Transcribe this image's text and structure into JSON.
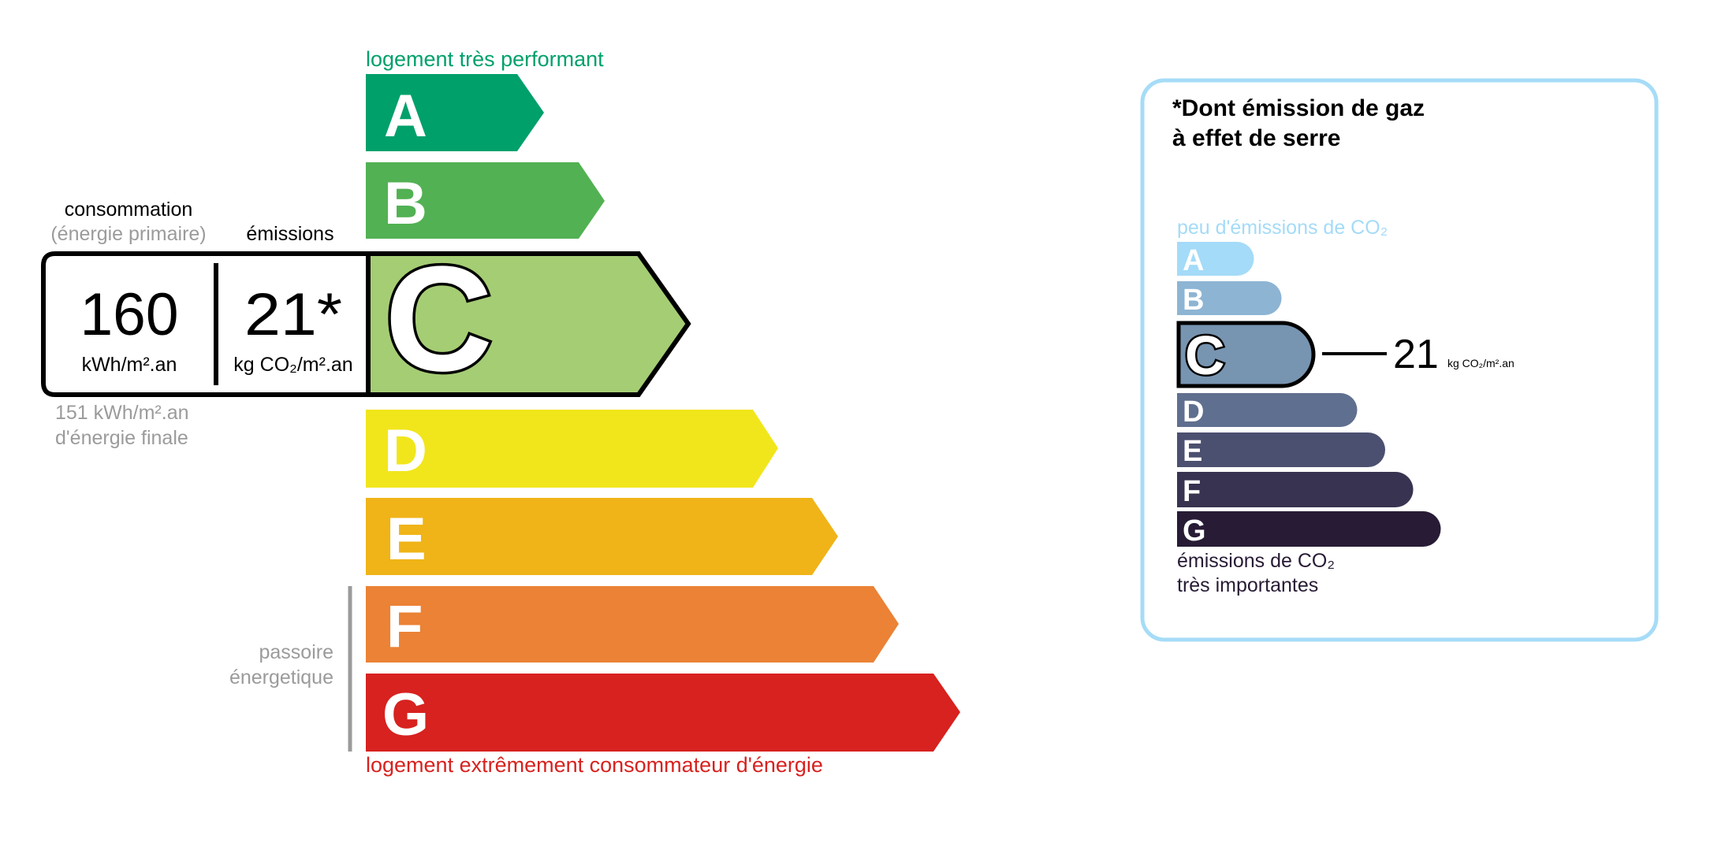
{
  "energy": {
    "top_label": "logement très performant",
    "bottom_label": "logement extrêmement consommateur d'énergie",
    "classes": [
      {
        "letter": "A",
        "color": "#00a06b"
      },
      {
        "letter": "B",
        "color": "#52b153"
      },
      {
        "letter": "C",
        "color": "#a5cd74"
      },
      {
        "letter": "D",
        "color": "#f1e61c"
      },
      {
        "letter": "E",
        "color": "#f0b418"
      },
      {
        "letter": "F",
        "color": "#eb8235"
      },
      {
        "letter": "G",
        "color": "#d7221f"
      }
    ],
    "current_class": "C",
    "consumption_label": "consommation",
    "consumption_sub": "(énergie primaire)",
    "emissions_label": "émissions",
    "consumption_value": "160",
    "consumption_unit": "kWh/m².an",
    "emissions_value": "21*",
    "emissions_unit": "kg CO₂/m².an",
    "final_energy_line1": "151 kWh/m².an",
    "final_energy_line2": "d'énergie finale",
    "passoire_line1": "passoire",
    "passoire_line2": "énergetique"
  },
  "ges": {
    "title_line1": "*Dont émission de gaz",
    "title_line2": "à effet de serre",
    "top_label": "peu d'émissions de CO₂",
    "bottom_line1": "émissions de CO₂",
    "bottom_line2": "très importantes",
    "classes": [
      {
        "letter": "A",
        "color": "#a4dbf8"
      },
      {
        "letter": "B",
        "color": "#8db4d3"
      },
      {
        "letter": "C",
        "color": "#7794b1"
      },
      {
        "letter": "D",
        "color": "#5f6f8f"
      },
      {
        "letter": "E",
        "color": "#4b5070"
      },
      {
        "letter": "F",
        "color": "#383350"
      },
      {
        "letter": "G",
        "color": "#281b35"
      }
    ],
    "current_class": "C",
    "value": "21",
    "unit": "kg CO₂/m².an",
    "border_color": "#a6dcf7"
  }
}
